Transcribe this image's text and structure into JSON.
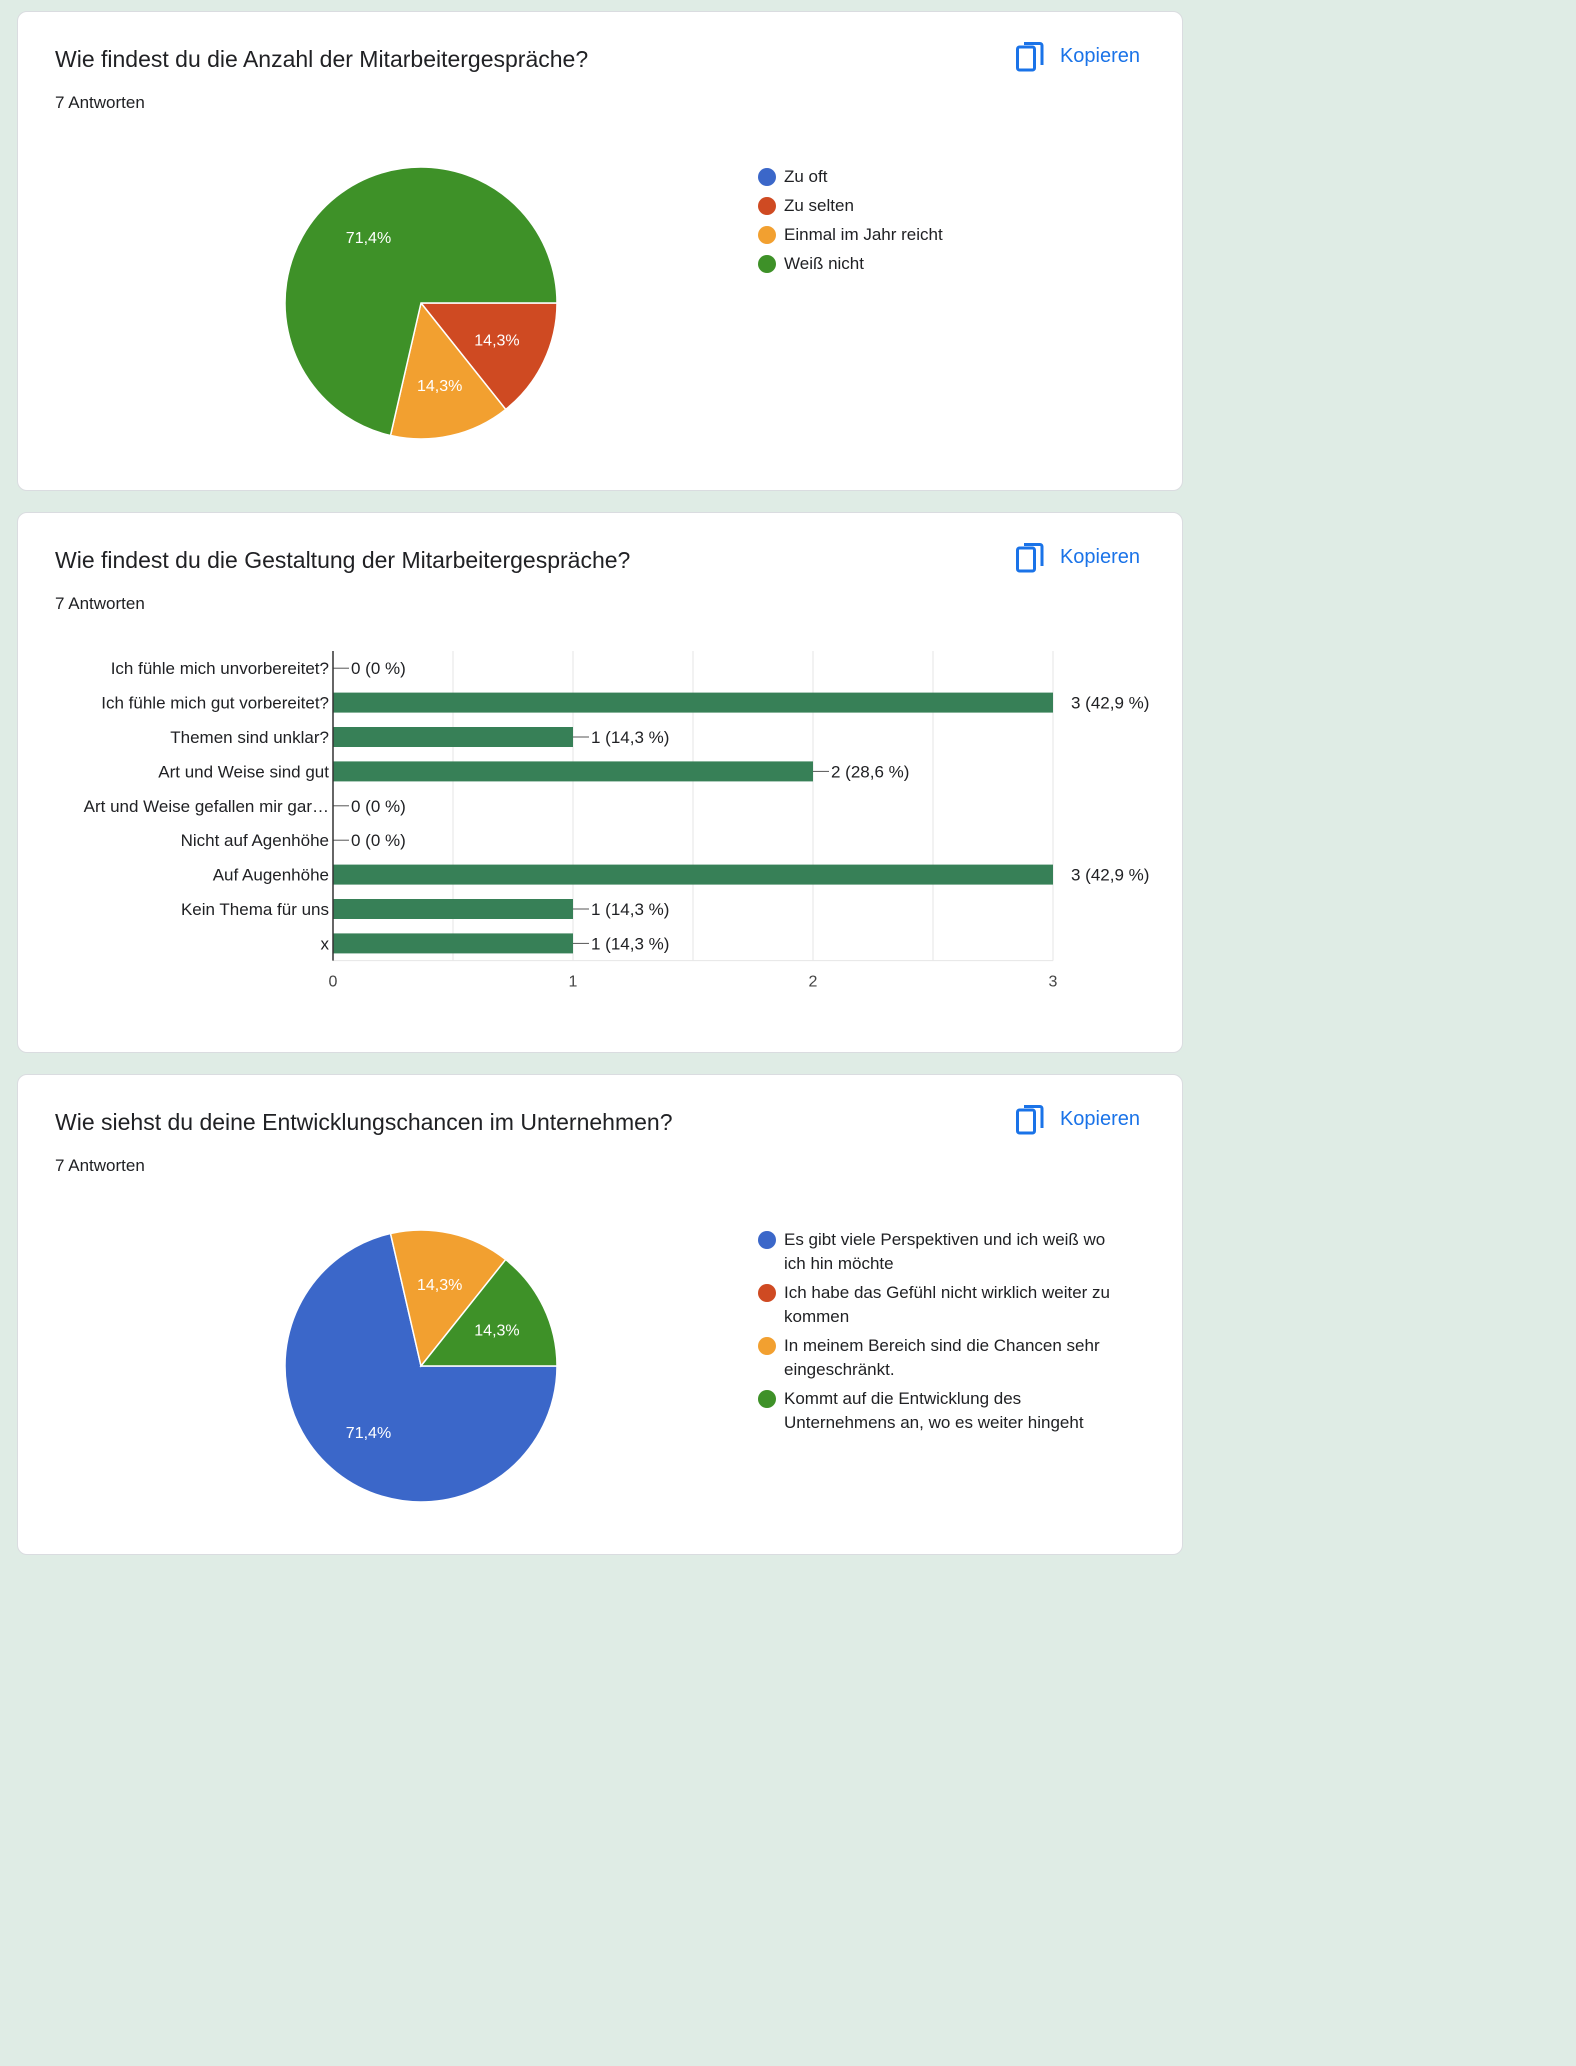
{
  "copy_label": "Kopieren",
  "questions": [
    {
      "title": "Wie findest du die Anzahl der Mitarbeitergespräche?",
      "count": "7 Antworten"
    },
    {
      "title": "Wie findest du die Gestaltung der Mitarbeitergespräche?",
      "count": "7 Antworten"
    },
    {
      "title": "Wie siehst du deine Entwicklungschancen im Unternehmen?",
      "count": "7 Antworten"
    }
  ],
  "colors": {
    "blue": "#3b67c9",
    "red": "#cf4a22",
    "orange": "#f2a030",
    "green": "#3e9128",
    "bar": "#378057",
    "accent": "#1a73e8"
  },
  "chart_data": [
    {
      "type": "pie",
      "legend_position": "right",
      "slices": [
        {
          "label": "Zu oft",
          "value": 0,
          "pct": "",
          "color": "#3b67c9"
        },
        {
          "label": "Zu selten",
          "value": 14.3,
          "pct": "14,3%",
          "color": "#cf4a22"
        },
        {
          "label": "Einmal im Jahr reicht",
          "value": 14.3,
          "pct": "14,3%",
          "color": "#f2a030"
        },
        {
          "label": "Weiß nicht",
          "value": 71.4,
          "pct": "71,4%",
          "color": "#3e9128"
        }
      ]
    },
    {
      "type": "bar",
      "orientation": "horizontal",
      "categories": [
        "Ich fühle mich unvorbereitet?",
        "Ich fühle mich gut vorbereitet?",
        "Themen sind unklar?",
        "Art und Weise sind gut",
        "Art und Weise gefallen mir gar…",
        "Nicht auf Agenhöhe",
        "Auf Augenhöhe",
        "Kein Thema für uns",
        "x"
      ],
      "values": [
        0,
        3,
        1,
        2,
        0,
        0,
        3,
        1,
        1
      ],
      "value_labels": [
        "0 (0 %)",
        "3 (42,9 %)",
        "1 (14,3 %)",
        "2 (28,6 %)",
        "0 (0 %)",
        "0 (0 %)",
        "3 (42,9 %)",
        "1 (14,3 %)",
        "1 (14,3 %)"
      ],
      "xlim": [
        0,
        3
      ],
      "xticks": [
        "0",
        "1",
        "2",
        "3"
      ],
      "grid": true
    },
    {
      "type": "pie",
      "legend_position": "right",
      "slices": [
        {
          "label": "Es gibt viele Perspektiven und ich weiß wo ich hin möchte",
          "value": 71.4,
          "pct": "71,4%",
          "color": "#3b67c9"
        },
        {
          "label": "Ich habe das Gefühl nicht wirklich weiter zu kommen",
          "value": 0,
          "pct": "",
          "color": "#cf4a22"
        },
        {
          "label": "In meinem Bereich sind die Chancen sehr eingeschränkt.",
          "value": 14.3,
          "pct": "14,3%",
          "color": "#f2a030"
        },
        {
          "label": "Kommt auf die Entwicklung des Unternehmens an, wo es weiter hingeht",
          "value": 14.3,
          "pct": "14,3%",
          "color": "#3e9128"
        }
      ]
    }
  ]
}
